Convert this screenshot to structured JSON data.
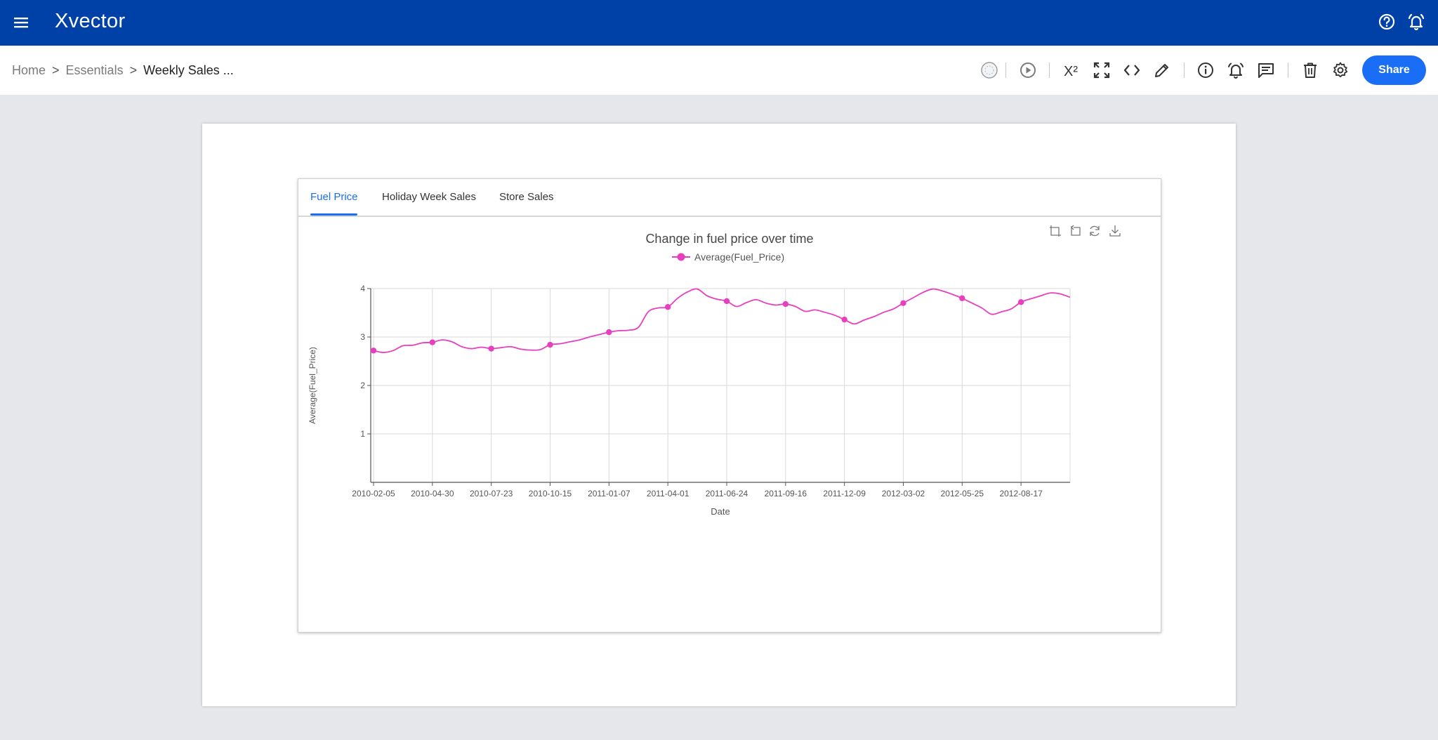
{
  "app": {
    "brand": "Xvector"
  },
  "breadcrumb": {
    "home": "Home",
    "section": "Essentials",
    "current": "Weekly Sales ...",
    "sep": ">"
  },
  "toolbar": {
    "share_label": "Share",
    "superscript_label": "X²"
  },
  "tabs": [
    {
      "label": "Fuel Price",
      "active": true
    },
    {
      "label": "Holiday Week Sales",
      "active": false
    },
    {
      "label": "Store Sales",
      "active": false
    }
  ],
  "colors": {
    "appbar": "#0041a8",
    "accent": "#1a6ef5",
    "series": "#e83fbf"
  },
  "chart_data": {
    "type": "line",
    "title": "Change in fuel price over time",
    "xlabel": "Date",
    "ylabel": "Average(Fuel_Price)",
    "ylim": [
      0,
      4
    ],
    "yticks": [
      1,
      2,
      3,
      4
    ],
    "grid": true,
    "legend": "top-center",
    "x_tick_labels": [
      "2010-02-05",
      "2010-04-30",
      "2010-07-23",
      "2010-10-15",
      "2011-01-07",
      "2011-04-01",
      "2011-06-24",
      "2011-09-16",
      "2011-12-09",
      "2012-03-02",
      "2012-05-25",
      "2012-08-17"
    ],
    "series": [
      {
        "name": "Average(Fuel_Price)",
        "x": [
          "2010-02-05",
          "2010-02-19",
          "2010-03-05",
          "2010-03-19",
          "2010-04-02",
          "2010-04-16",
          "2010-04-30",
          "2010-05-14",
          "2010-05-28",
          "2010-06-11",
          "2010-06-25",
          "2010-07-09",
          "2010-07-23",
          "2010-08-06",
          "2010-08-20",
          "2010-09-03",
          "2010-09-17",
          "2010-10-01",
          "2010-10-15",
          "2010-10-29",
          "2010-11-12",
          "2010-11-26",
          "2010-12-10",
          "2010-12-24",
          "2011-01-07",
          "2011-01-21",
          "2011-02-04",
          "2011-02-18",
          "2011-03-04",
          "2011-03-18",
          "2011-04-01",
          "2011-04-15",
          "2011-04-29",
          "2011-05-13",
          "2011-05-27",
          "2011-06-10",
          "2011-06-24",
          "2011-07-08",
          "2011-07-22",
          "2011-08-05",
          "2011-08-19",
          "2011-09-02",
          "2011-09-16",
          "2011-09-30",
          "2011-10-14",
          "2011-10-28",
          "2011-11-11",
          "2011-11-25",
          "2011-12-09",
          "2011-12-23",
          "2012-01-06",
          "2012-01-20",
          "2012-02-03",
          "2012-02-17",
          "2012-03-02",
          "2012-03-16",
          "2012-03-30",
          "2012-04-13",
          "2012-04-27",
          "2012-05-11",
          "2012-05-25",
          "2012-06-08",
          "2012-06-22",
          "2012-07-06",
          "2012-07-20",
          "2012-08-03",
          "2012-08-17",
          "2012-08-31",
          "2012-09-14",
          "2012-09-28",
          "2012-10-12",
          "2012-10-26"
        ],
        "y": [
          2.72,
          2.68,
          2.72,
          2.82,
          2.83,
          2.88,
          2.89,
          2.94,
          2.9,
          2.8,
          2.76,
          2.79,
          2.76,
          2.78,
          2.8,
          2.75,
          2.73,
          2.74,
          2.84,
          2.86,
          2.9,
          2.94,
          3.0,
          3.05,
          3.1,
          3.13,
          3.14,
          3.2,
          3.52,
          3.6,
          3.62,
          3.8,
          3.93,
          3.99,
          3.85,
          3.78,
          3.74,
          3.63,
          3.71,
          3.77,
          3.7,
          3.66,
          3.68,
          3.63,
          3.53,
          3.56,
          3.51,
          3.45,
          3.36,
          3.27,
          3.35,
          3.42,
          3.51,
          3.58,
          3.7,
          3.81,
          3.92,
          3.99,
          3.95,
          3.88,
          3.8,
          3.7,
          3.6,
          3.47,
          3.52,
          3.58,
          3.72,
          3.79,
          3.85,
          3.91,
          3.89,
          3.82
        ]
      }
    ],
    "markers_at": [
      "2010-02-05",
      "2010-04-30",
      "2010-07-23",
      "2010-10-15",
      "2011-01-07",
      "2011-04-01",
      "2011-06-24",
      "2011-09-16",
      "2011-12-09",
      "2012-03-02",
      "2012-05-25",
      "2012-08-17"
    ]
  }
}
